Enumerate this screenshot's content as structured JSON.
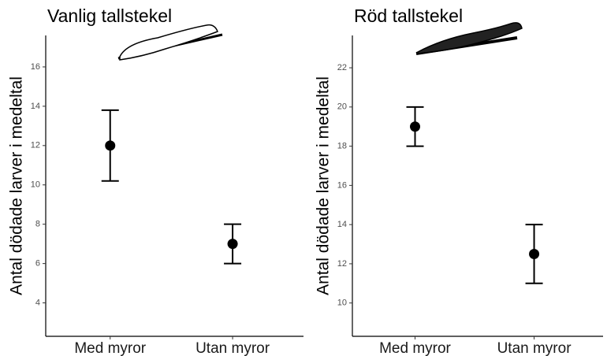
{
  "chart_data": [
    {
      "type": "point",
      "title": "Vanlig tallstekel",
      "y_label": "Antal dödade larver i medeltal",
      "categories": [
        "Med myror",
        "Utan myror"
      ],
      "values": [
        12,
        7
      ],
      "errors": [
        1.8,
        1
      ],
      "color": "#000000",
      "ylim": [
        2.3,
        17.6
      ],
      "yticks": [
        4,
        6,
        8,
        10,
        12,
        14,
        16
      ]
    },
    {
      "type": "point",
      "title": "Röd tallstekel",
      "y_label": "Antal dödade larver i medeltal",
      "categories": [
        "Med myror",
        "Utan myror"
      ],
      "values": [
        19,
        12.5
      ],
      "errors": [
        1,
        1.5
      ],
      "color": "#000000",
      "ylim": [
        8.3,
        23.65
      ],
      "yticks": [
        10,
        12,
        14,
        16,
        18,
        20,
        22
      ]
    }
  ]
}
